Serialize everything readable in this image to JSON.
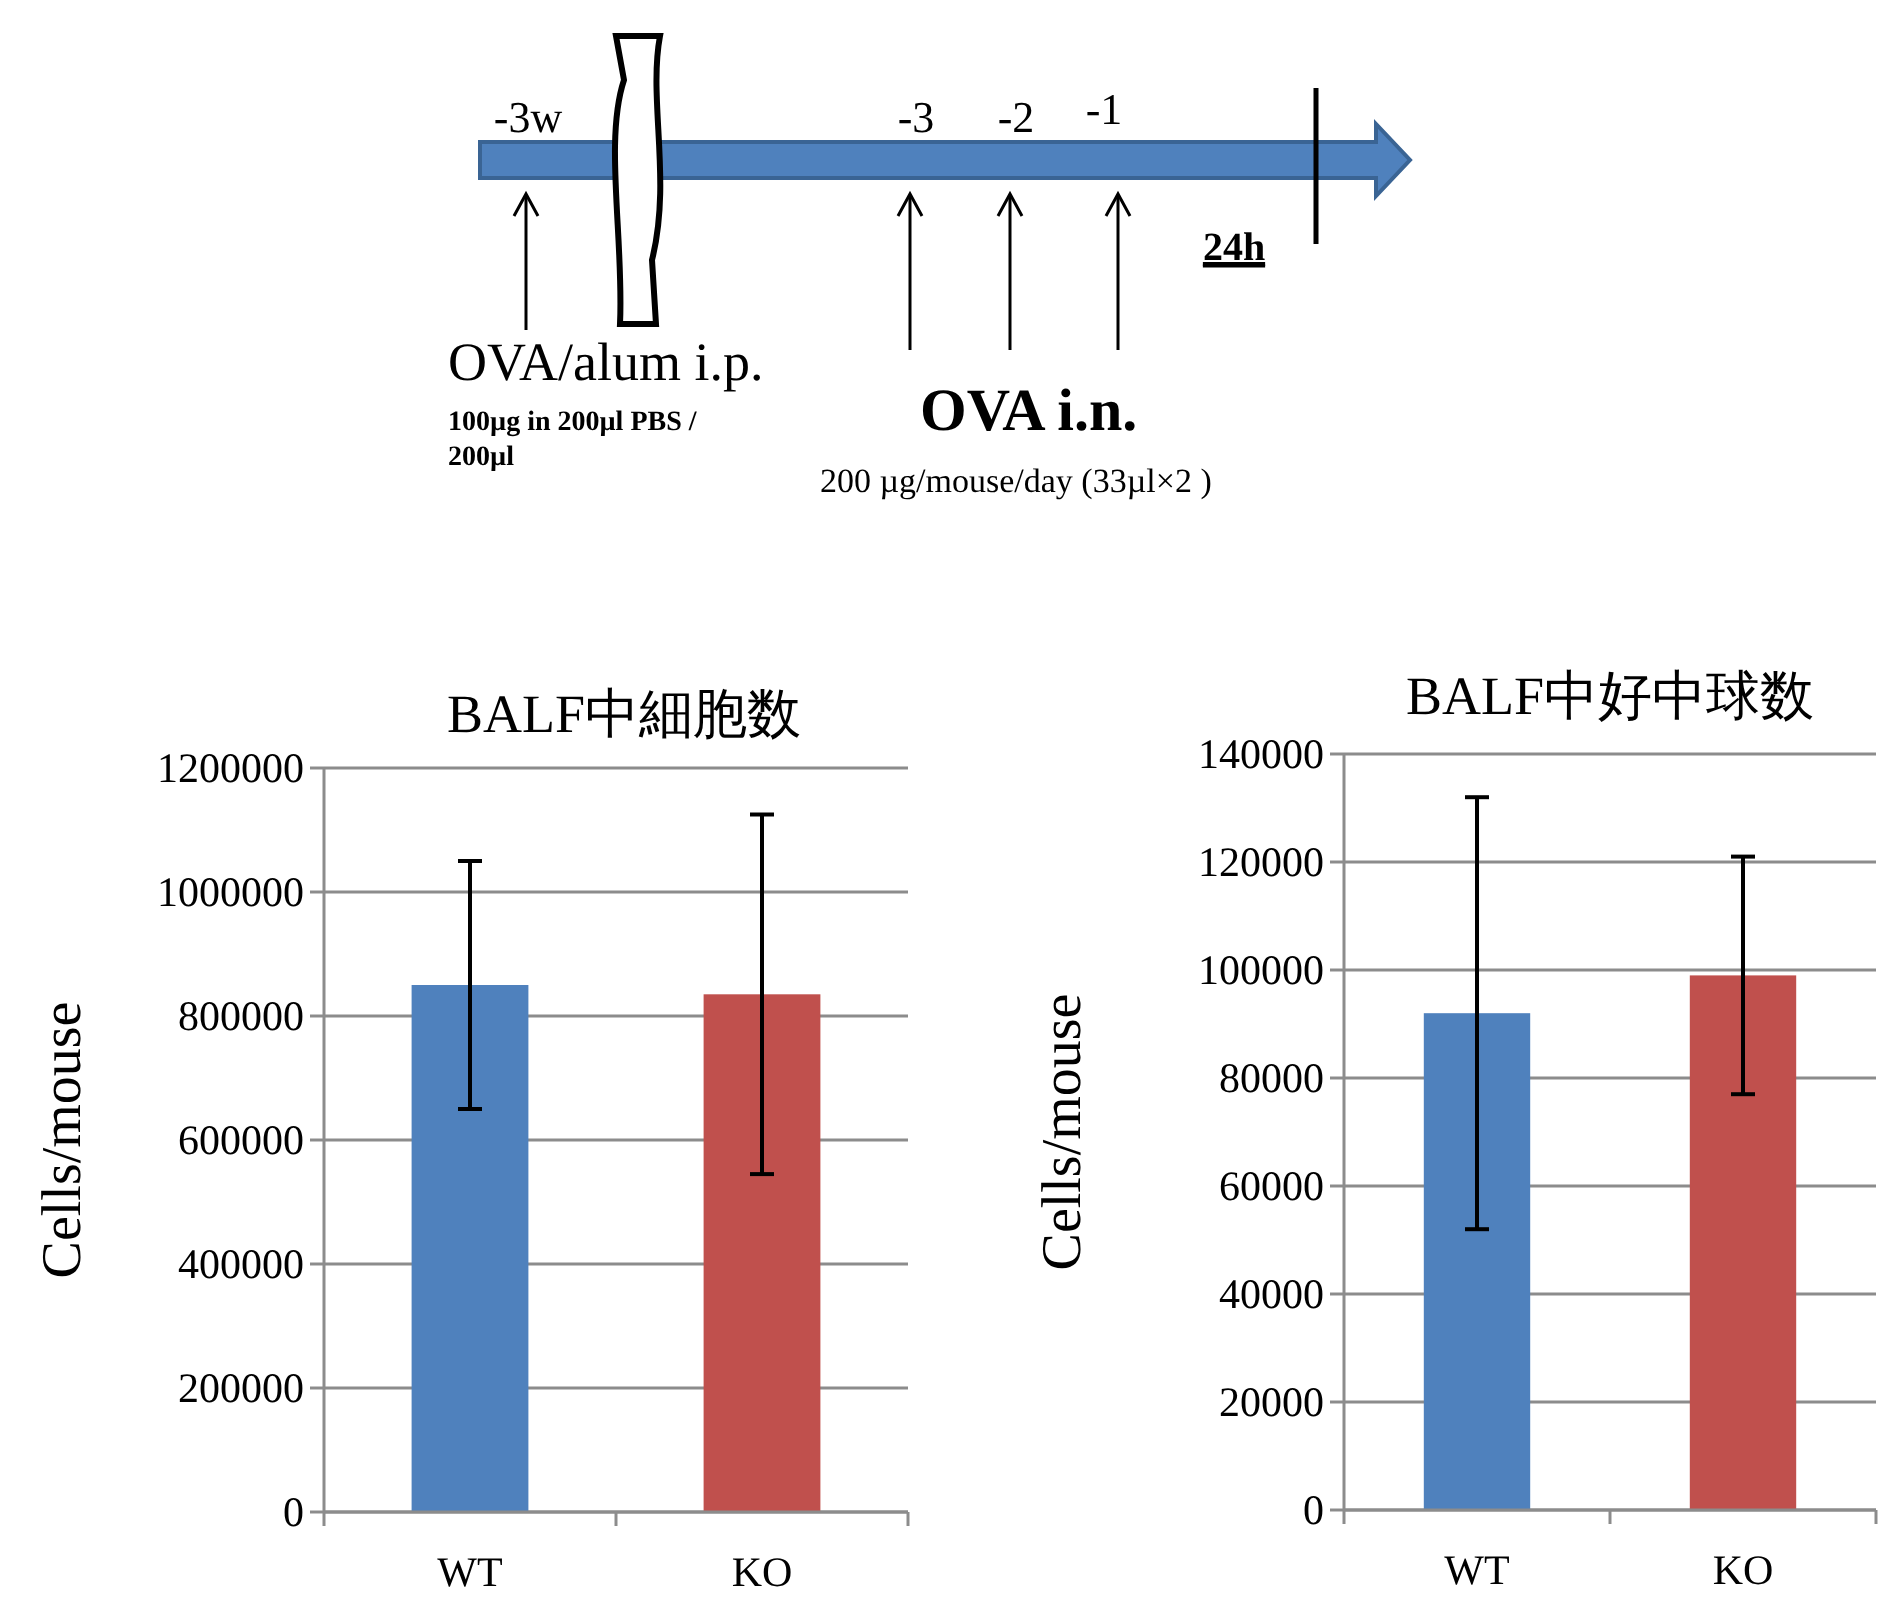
{
  "chart_data": [
    {
      "type": "other",
      "annotations": [
        "-3w",
        "-3",
        "-2",
        "-1",
        "24h",
        "OVA/alum   i.p.",
        "100µg in 200µl PBS / 200µl",
        "OVA   i.n.",
        "200 µg/mouse/day  (33µl×2 )"
      ]
    },
    {
      "type": "bar",
      "title": "BALF中細胞数",
      "ylabel": "Cells/mouse",
      "categories": [
        "WT",
        "KO"
      ],
      "values": [
        850000,
        835000
      ],
      "colors": [
        "#4f81bd",
        "#c0504d"
      ],
      "errors": [
        200000,
        [
          545000,
          1125000
        ]
      ],
      "ylim": [
        0,
        1200000
      ],
      "yticks": [
        0,
        200000,
        400000,
        600000,
        800000,
        1000000,
        1200000
      ],
      "grid": "y"
    },
    {
      "type": "bar",
      "title": "BALF中好中球数",
      "ylabel": "Cells/mouse",
      "categories": [
        "WT",
        "KO"
      ],
      "values": [
        92000,
        99000
      ],
      "colors": [
        "#4f81bd",
        "#c0504d"
      ],
      "errors": [
        [
          52000,
          132000
        ],
        [
          77000,
          121000
        ]
      ],
      "ylim": [
        0,
        140000
      ],
      "yticks": [
        0,
        20000,
        40000,
        60000,
        80000,
        100000,
        120000,
        140000
      ],
      "grid": "y"
    }
  ]
}
